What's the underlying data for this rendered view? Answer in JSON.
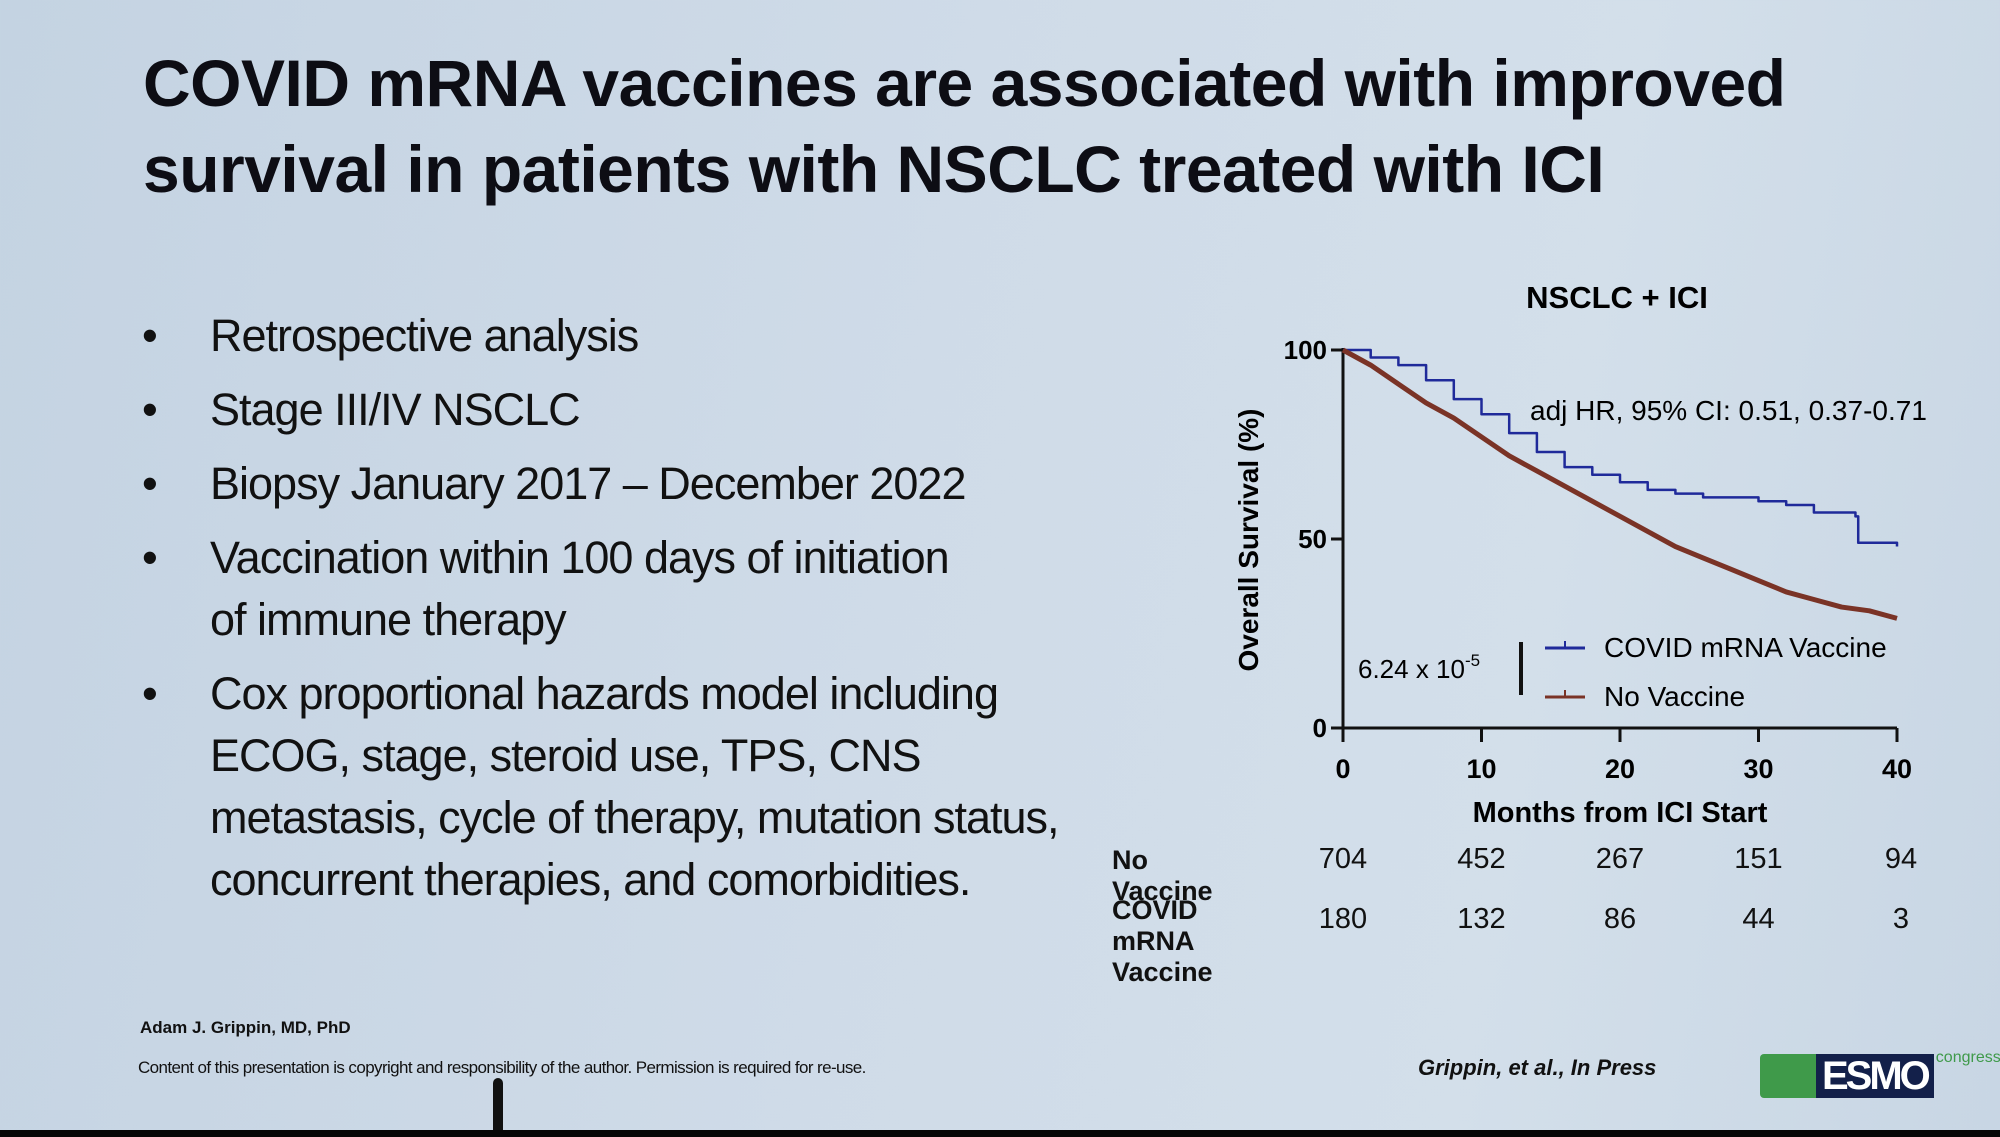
{
  "slide": {
    "title_lines": [
      "COVID mRNA vaccines are associated with improved",
      "survival in patients with NSCLC treated with ICI"
    ],
    "bullets": [
      "Retrospective analysis",
      "Stage III/IV NSCLC",
      "Biopsy January 2017 – December 2022",
      "Vaccination within 100 days of initiation of immune therapy",
      "Cox proportional hazards model including ECOG, stage, steroid use, TPS, CNS metastasis, cycle of therapy, mutation status, concurrent therapies, and comorbidities."
    ],
    "author": "Adam J. Grippin, MD, PhD",
    "copyright": "Content of this presentation is copyright and responsibility of the author. Permission is required for re-use.",
    "citation": "Grippin, et al., In Press",
    "logo": {
      "text": "ESMO",
      "super": "congress"
    }
  },
  "chart_data": {
    "type": "line",
    "subtype": "kaplan-meier",
    "title": "NSCLC + ICI",
    "xlabel": "Months from ICI Start",
    "ylabel": "Overall Survival (%)",
    "xlim": [
      0,
      40
    ],
    "ylim": [
      0,
      100
    ],
    "xticks": [
      "0",
      "10",
      "20",
      "30",
      "40"
    ],
    "yticks": [
      "0",
      "50",
      "100"
    ],
    "grid": false,
    "annotation": "adj HR, 95% CI: 0.51, 0.37-0.71",
    "p_value_base": "6.24 x 10",
    "p_value_exp": "-5",
    "legend_position": "bottom-right",
    "colors": {
      "vaccine": "#1f2a9a",
      "no_vaccine": "#7a3326"
    },
    "series": [
      {
        "name": "COVID mRNA Vaccine",
        "color": "#1f2a9a",
        "x": [
          0,
          2,
          4,
          6,
          8,
          10,
          12,
          14,
          16,
          18,
          20,
          22,
          24,
          26,
          28,
          30,
          32,
          34,
          37,
          37.2,
          40
        ],
        "y": [
          100,
          98,
          96,
          92,
          87,
          83,
          78,
          73,
          69,
          67,
          65,
          63,
          62,
          61,
          61,
          60,
          59,
          57,
          56,
          49,
          48
        ]
      },
      {
        "name": "No Vaccine",
        "color": "#7a3326",
        "x": [
          0,
          2,
          4,
          6,
          8,
          10,
          12,
          14,
          16,
          18,
          20,
          22,
          24,
          26,
          28,
          30,
          32,
          34,
          36,
          38,
          40
        ],
        "y": [
          100,
          96,
          91,
          86,
          82,
          77,
          72,
          68,
          64,
          60,
          56,
          52,
          48,
          45,
          42,
          39,
          36,
          34,
          32,
          31,
          29
        ]
      }
    ],
    "risk_table": {
      "times": [
        0,
        10,
        20,
        30,
        40
      ],
      "rows": [
        {
          "label": "No Vaccine",
          "values": [
            "704",
            "452",
            "267",
            "151",
            "94"
          ]
        },
        {
          "label": "COVID mRNA Vaccine",
          "values": [
            "180",
            "132",
            "86",
            "44",
            "3"
          ]
        }
      ]
    }
  }
}
